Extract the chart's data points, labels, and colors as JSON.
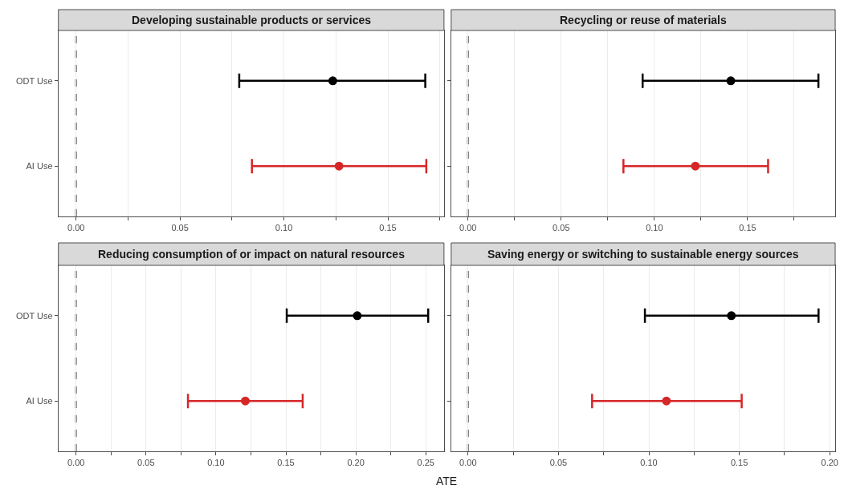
{
  "chart_data": [
    {
      "type": "scatter",
      "orientation": "horizontal",
      "title": "Developing sustainable products or services",
      "categories": [
        "ODT Use",
        "AI Use"
      ],
      "values": [
        0.1235,
        0.1265
      ],
      "errors": [
        [
          0.0785,
          0.168
        ],
        [
          0.0846,
          0.1685
        ]
      ],
      "colors": [
        "#000000",
        "#d62728"
      ],
      "marker": "circle",
      "xlim": [
        -0.0085,
        0.177
      ],
      "xticks": [
        {
          "value": 0,
          "label": "0.00"
        },
        {
          "value": 0.025,
          "label": null
        },
        {
          "value": 0.05,
          "label": "0.05"
        },
        {
          "value": 0.075,
          "label": null
        },
        {
          "value": 0.1,
          "label": "0.10"
        },
        {
          "value": 0.125,
          "label": null
        },
        {
          "value": 0.15,
          "label": "0.15"
        },
        {
          "value": 0.175,
          "label": null
        }
      ],
      "grid": "x",
      "ref_lines": [
        {
          "axis": "x",
          "value": 0,
          "label": null,
          "color": "#808080",
          "line_style": "dashed"
        }
      ]
    },
    {
      "type": "scatter",
      "orientation": "horizontal",
      "title": "Recycling or reuse of materials",
      "categories": [
        null,
        null
      ],
      "values": [
        0.141,
        0.122
      ],
      "errors": [
        [
          0.0937,
          0.188
        ],
        [
          0.0834,
          0.161
        ]
      ],
      "colors": [
        "#000000",
        "#d62728"
      ],
      "marker": "circle",
      "xlim": [
        -0.009,
        0.197
      ],
      "xticks": [
        {
          "value": 0,
          "label": "0.00"
        },
        {
          "value": 0.025,
          "label": null
        },
        {
          "value": 0.05,
          "label": "0.05"
        },
        {
          "value": 0.075,
          "label": null
        },
        {
          "value": 0.1,
          "label": "0.10"
        },
        {
          "value": 0.125,
          "label": null
        },
        {
          "value": 0.15,
          "label": "0.15"
        },
        {
          "value": 0.175,
          "label": null
        }
      ],
      "grid": "x",
      "ref_lines": [
        {
          "axis": "x",
          "value": 0,
          "label": null,
          "color": "#808080",
          "line_style": "dashed"
        }
      ]
    },
    {
      "type": "scatter",
      "orientation": "horizontal",
      "title": "Reducing consumption of or impact on natural resources",
      "xlabel": "ATE",
      "categories": [
        "ODT Use",
        "AI Use"
      ],
      "values": [
        0.201,
        0.121
      ],
      "errors": [
        [
          0.1506,
          0.2517
        ],
        [
          0.08,
          0.162
        ]
      ],
      "colors": [
        "#000000",
        "#d62728"
      ],
      "marker": "circle",
      "xlim": [
        -0.0126,
        0.263
      ],
      "xticks": [
        {
          "value": 0,
          "label": "0.00"
        },
        {
          "value": 0.025,
          "label": null
        },
        {
          "value": 0.05,
          "label": "0.05"
        },
        {
          "value": 0.075,
          "label": null
        },
        {
          "value": 0.1,
          "label": "0.10"
        },
        {
          "value": 0.125,
          "label": null
        },
        {
          "value": 0.15,
          "label": "0.15"
        },
        {
          "value": 0.175,
          "label": null
        },
        {
          "value": 0.2,
          "label": "0.20"
        },
        {
          "value": 0.225,
          "label": null
        },
        {
          "value": 0.25,
          "label": "0.25"
        }
      ],
      "grid": "x",
      "ref_lines": [
        {
          "axis": "x",
          "value": 0,
          "label": null,
          "color": "#808080",
          "line_style": "dashed"
        }
      ]
    },
    {
      "type": "scatter",
      "orientation": "horizontal",
      "title": "Saving energy or switching to sustainable energy sources",
      "categories": [
        null,
        null
      ],
      "values": [
        0.1456,
        0.1097
      ],
      "errors": [
        [
          0.0978,
          0.1938
        ],
        [
          0.0686,
          0.1513
        ]
      ],
      "colors": [
        "#000000",
        "#d62728"
      ],
      "marker": "circle",
      "xlim": [
        -0.0093,
        0.203
      ],
      "xticks": [
        {
          "value": 0,
          "label": "0.00"
        },
        {
          "value": 0.025,
          "label": null
        },
        {
          "value": 0.05,
          "label": "0.05"
        },
        {
          "value": 0.075,
          "label": null
        },
        {
          "value": 0.1,
          "label": "0.10"
        },
        {
          "value": 0.125,
          "label": null
        },
        {
          "value": 0.15,
          "label": "0.15"
        },
        {
          "value": 0.175,
          "label": null
        },
        {
          "value": 0.2,
          "label": "0.20"
        }
      ],
      "grid": "x",
      "ref_lines": [
        {
          "axis": "x",
          "value": 0,
          "label": null,
          "color": "#808080",
          "line_style": "dashed"
        }
      ]
    }
  ]
}
